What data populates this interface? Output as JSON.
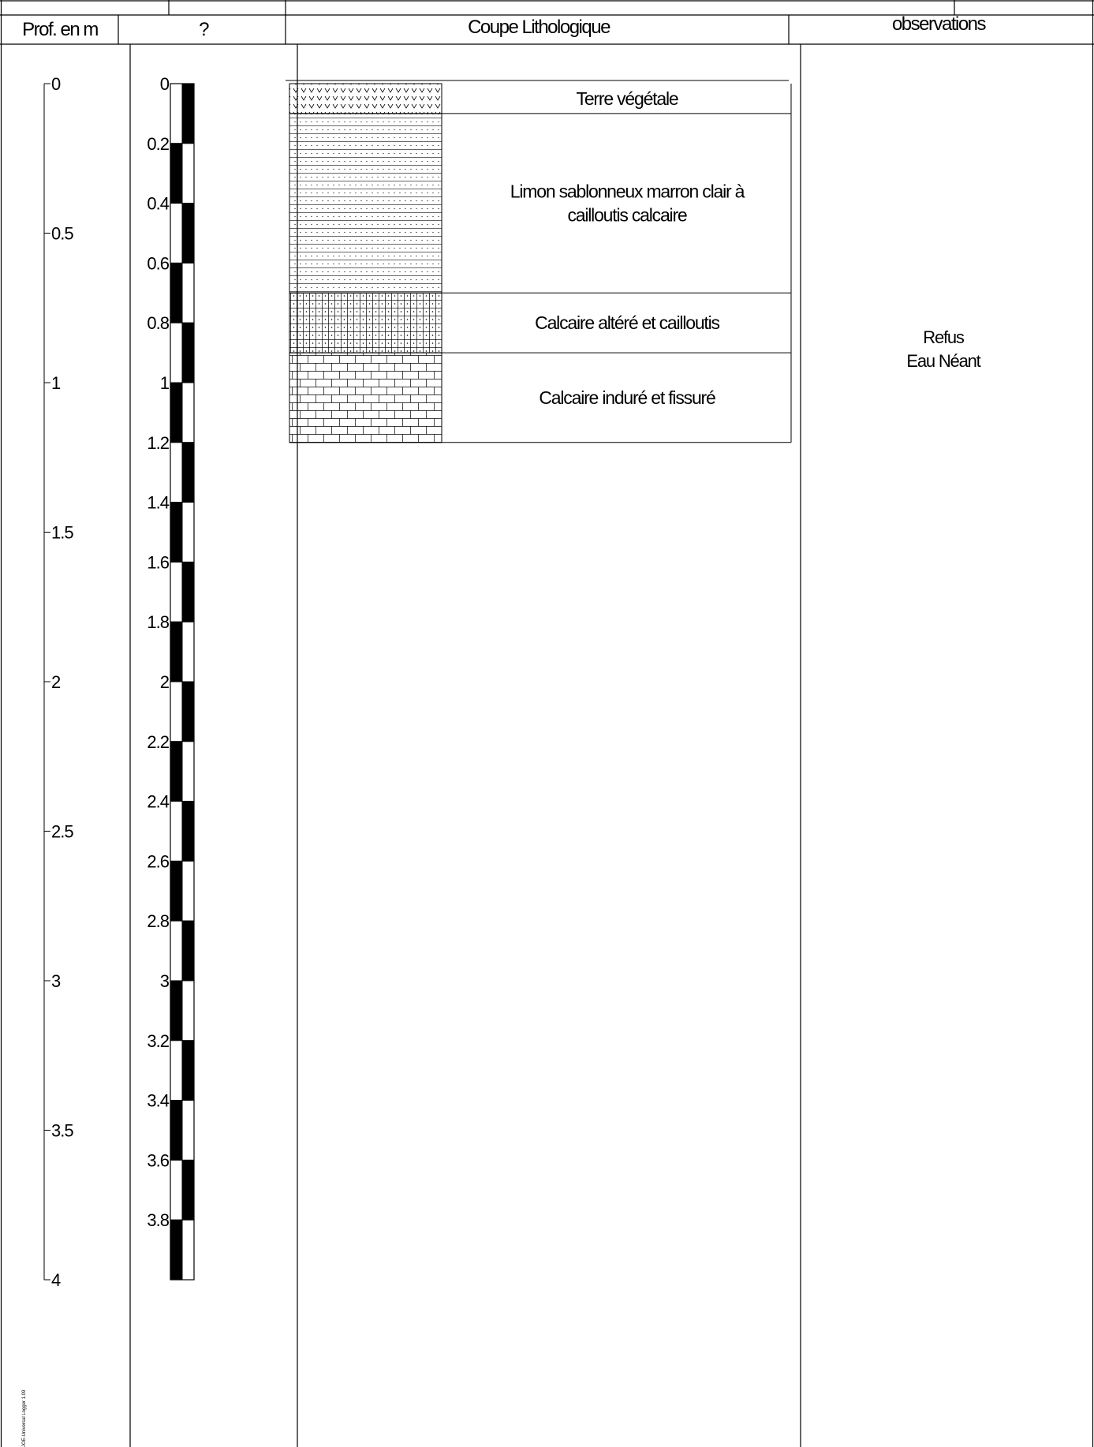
{
  "headers": {
    "depth": "Prof. en m",
    "scale": "?",
    "section": "Coupe Lithologique",
    "observations": "observations"
  },
  "depth_axis": {
    "labels": [
      "0",
      "0.5",
      "1",
      "1.5",
      "2",
      "2.5",
      "3",
      "3.5",
      "4"
    ],
    "values": [
      0,
      0.5,
      1,
      1.5,
      2,
      2.5,
      3,
      3.5,
      4
    ]
  },
  "scale_bar": {
    "labels": [
      "0",
      "0.2",
      "0.4",
      "0.6",
      "0.8",
      "1",
      "1.2",
      "1.4",
      "1.6",
      "1.8",
      "2",
      "2.2",
      "2.4",
      "2.6",
      "2.8",
      "3",
      "3.2",
      "3.4",
      "3.6",
      "3.8"
    ],
    "values": [
      0,
      0.2,
      0.4,
      0.6,
      0.8,
      1,
      1.2,
      1.4,
      1.6,
      1.8,
      2,
      2.2,
      2.4,
      2.6,
      2.8,
      3,
      3.2,
      3.4,
      3.6,
      3.8
    ],
    "end": 4
  },
  "layers": [
    {
      "lines": [
        "Terre végétale"
      ],
      "top": 0,
      "bottom": 0.1,
      "pattern": "vegetal"
    },
    {
      "lines": [
        "Limon sablonneux marron clair à",
        "cailloutis calcaire"
      ],
      "top": 0.1,
      "bottom": 0.7,
      "pattern": "silt"
    },
    {
      "lines": [
        "Calcaire altéré et cailloutis"
      ],
      "top": 0.7,
      "bottom": 0.9,
      "pattern": "weathered-limestone"
    },
    {
      "lines": [
        "Calcaire induré et fissuré"
      ],
      "top": 0.9,
      "bottom": 1.2,
      "pattern": "limestone"
    }
  ],
  "observations": {
    "lines": [
      "Refus",
      "Eau Néant"
    ]
  },
  "software_label": "JOE-Universal Logger 1.09",
  "colors": {
    "line": "#000000",
    "hatch": "#000000",
    "background": "#ffffff"
  }
}
